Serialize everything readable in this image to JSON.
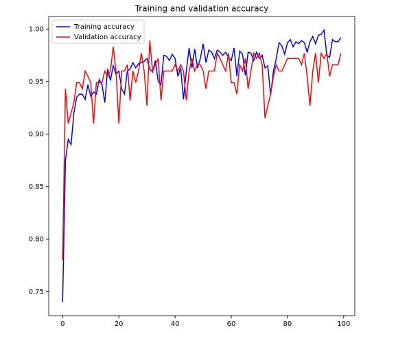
{
  "chart_data": {
    "type": "line",
    "title": "Training and validation accuracy",
    "x": [
      0,
      1,
      2,
      3,
      4,
      5,
      6,
      7,
      8,
      9,
      10,
      11,
      12,
      13,
      14,
      15,
      16,
      17,
      18,
      19,
      20,
      21,
      22,
      23,
      24,
      25,
      26,
      27,
      28,
      29,
      30,
      31,
      32,
      33,
      34,
      35,
      36,
      37,
      38,
      39,
      40,
      41,
      42,
      43,
      44,
      45,
      46,
      47,
      48,
      49,
      50,
      51,
      52,
      53,
      54,
      55,
      56,
      57,
      58,
      59,
      60,
      61,
      62,
      63,
      64,
      65,
      66,
      67,
      68,
      69,
      70,
      71,
      72,
      73,
      74,
      75,
      76,
      77,
      78,
      79,
      80,
      81,
      82,
      83,
      84,
      85,
      86,
      87,
      88,
      89,
      90,
      91,
      92,
      93,
      94,
      95,
      96,
      97,
      98,
      99
    ],
    "series": [
      {
        "name": "Training accuracy",
        "color": "#0000ff",
        "values": [
          0.74,
          0.875,
          0.895,
          0.89,
          0.92,
          0.935,
          0.938,
          0.938,
          0.933,
          0.947,
          0.936,
          0.94,
          0.938,
          0.952,
          0.947,
          0.93,
          0.962,
          0.951,
          0.965,
          0.957,
          0.96,
          0.943,
          0.938,
          0.96,
          0.962,
          0.968,
          0.963,
          0.967,
          0.968,
          0.969,
          0.972,
          0.962,
          0.959,
          0.97,
          0.95,
          0.947,
          0.975,
          0.974,
          0.97,
          0.976,
          0.972,
          0.955,
          0.963,
          0.933,
          0.96,
          0.982,
          0.963,
          0.981,
          0.963,
          0.972,
          0.986,
          0.968,
          0.98,
          0.978,
          0.972,
          0.98,
          0.978,
          0.975,
          0.978,
          0.973,
          0.97,
          0.982,
          0.955,
          0.979,
          0.976,
          0.956,
          0.978,
          0.977,
          0.97,
          0.978,
          0.972,
          0.975,
          0.963,
          0.965,
          0.937,
          0.96,
          0.972,
          0.987,
          0.984,
          0.976,
          0.987,
          0.99,
          0.983,
          0.988,
          0.986,
          0.989,
          0.987,
          0.978,
          0.988,
          0.993,
          0.986,
          0.994,
          0.995,
          0.999,
          0.975,
          0.973,
          0.99,
          0.988,
          0.988,
          0.992
        ]
      },
      {
        "name": "Validation accuracy",
        "color": "#ff0000",
        "values": [
          0.78,
          0.943,
          0.91,
          0.92,
          0.93,
          0.949,
          0.949,
          0.943,
          0.96,
          0.955,
          0.949,
          0.91,
          0.949,
          0.949,
          0.949,
          0.96,
          0.955,
          0.96,
          0.983,
          0.96,
          0.91,
          0.96,
          0.96,
          0.966,
          0.932,
          0.96,
          0.949,
          0.96,
          0.977,
          0.96,
          0.927,
          0.989,
          0.96,
          0.966,
          0.972,
          0.932,
          0.96,
          0.96,
          0.96,
          0.96,
          0.966,
          0.96,
          0.966,
          0.96,
          0.932,
          0.96,
          0.972,
          0.96,
          0.966,
          0.966,
          0.96,
          0.943,
          0.96,
          0.96,
          0.96,
          0.977,
          0.972,
          0.966,
          0.96,
          0.977,
          0.949,
          0.949,
          0.938,
          0.966,
          0.96,
          0.972,
          0.943,
          0.96,
          0.977,
          0.972,
          0.977,
          0.966,
          0.915,
          0.927,
          0.938,
          0.955,
          0.966,
          0.96,
          0.96,
          0.966,
          0.972,
          0.972,
          0.972,
          0.972,
          0.972,
          0.966,
          0.977,
          0.955,
          0.927,
          0.96,
          0.977,
          0.949,
          0.977,
          0.972,
          0.977,
          0.955,
          0.966,
          0.966,
          0.966,
          0.977
        ]
      }
    ],
    "xlim": [
      -4.95,
      103.95
    ],
    "xticks": [
      0,
      20,
      40,
      60,
      80,
      100
    ],
    "ylim": [
      0.727,
      1.012
    ],
    "yticks": [
      {
        "value": 0.75,
        "label": "0.75"
      },
      {
        "value": 0.8,
        "label": "0.80"
      },
      {
        "value": 0.85,
        "label": "0.85"
      },
      {
        "value": 0.9,
        "label": "0.90"
      },
      {
        "value": 0.95,
        "label": "0.95"
      },
      {
        "value": 1.0,
        "label": "1.00"
      }
    ],
    "legend": "upper left",
    "grid": false
  }
}
